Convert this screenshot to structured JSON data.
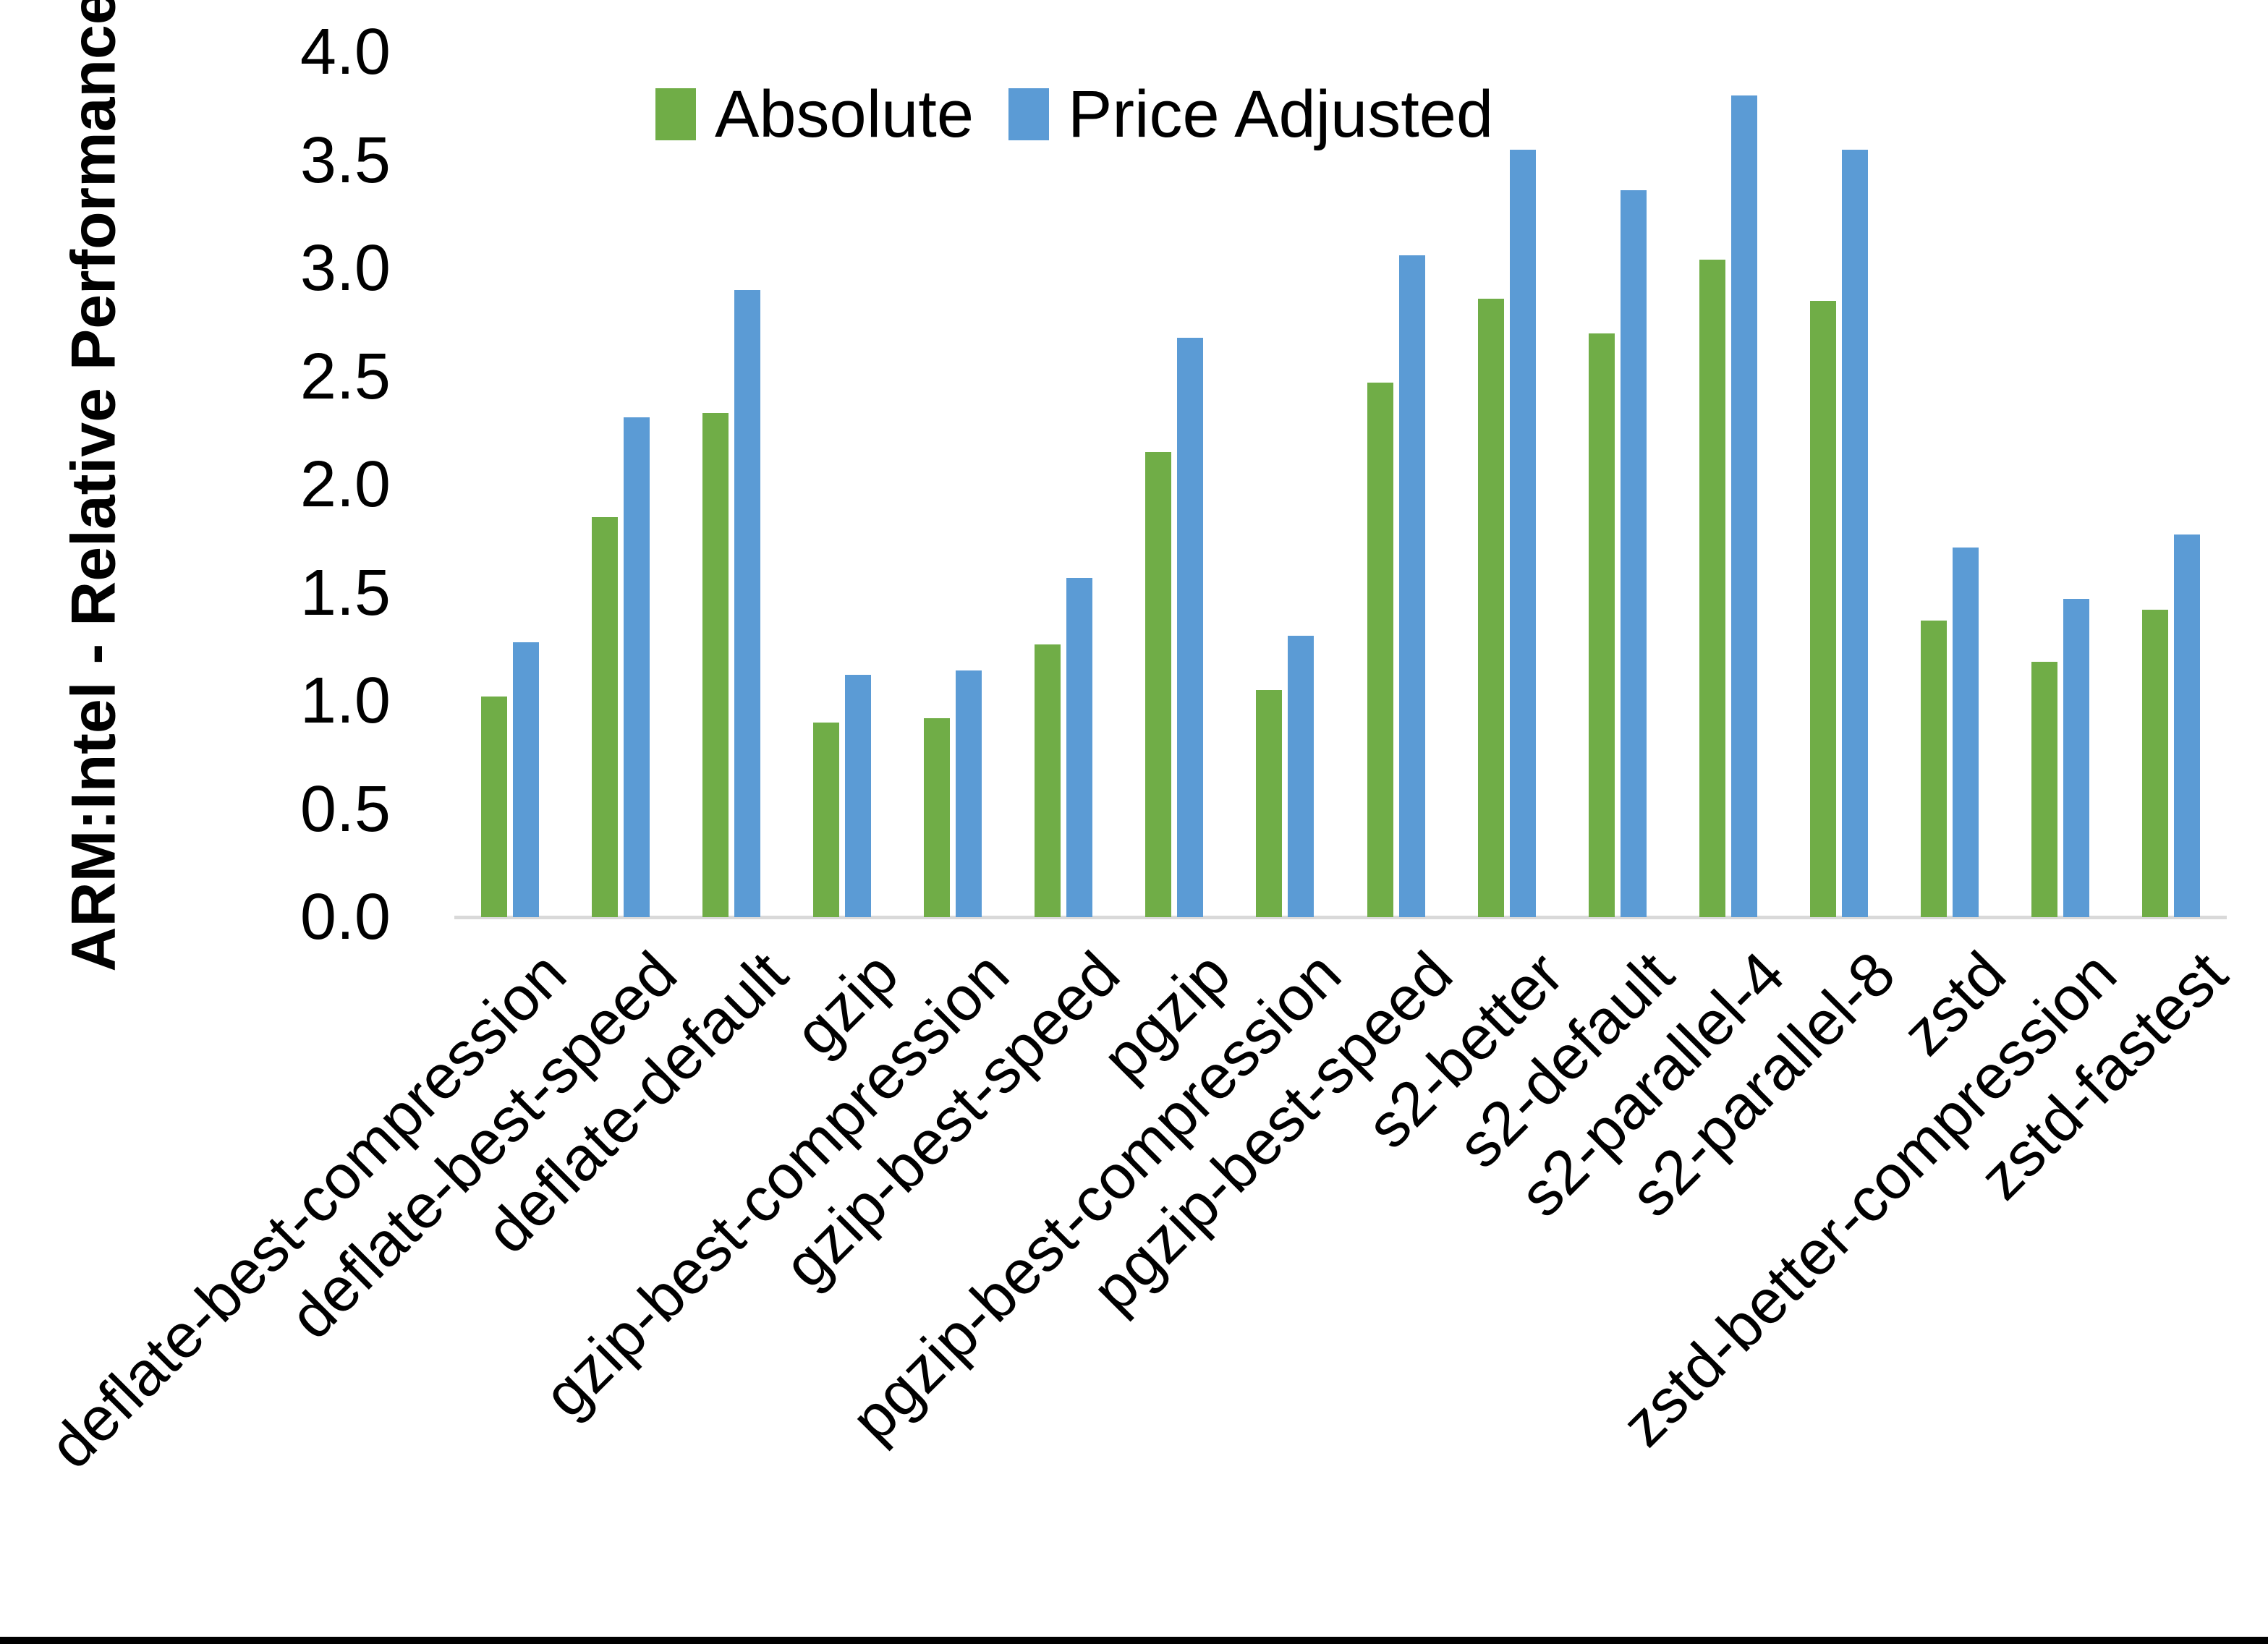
{
  "figure": {
    "y_axis_title": "ARM:Intel - Relative Performance",
    "legend": {
      "absolute_label": "Absolute",
      "price_adjusted_label": "Price Adjusted"
    },
    "colors": {
      "absolute": "#70AD47",
      "price_adjusted": "#5B9BD5",
      "axis_line": "#D9D9D9",
      "text": "#000000",
      "background": "#FFFFFF",
      "bottom_border": "#000000"
    }
  },
  "chart_data": {
    "type": "bar",
    "title": "",
    "xlabel": "",
    "ylabel": "ARM:Intel - Relative Performance",
    "ylim": [
      0.0,
      4.0
    ],
    "ytick_step": 0.5,
    "yticks": [
      "0.0",
      "0.5",
      "1.0",
      "1.5",
      "2.0",
      "2.5",
      "3.0",
      "3.5",
      "4.0"
    ],
    "grid": false,
    "legend_position": "top-inside",
    "x_label_rotation_deg": 45,
    "categories": [
      "deflate-best-compression",
      "deflate-best-speed",
      "deflate-default",
      "gzip",
      "gzip-best-compression",
      "gzip-best-speed",
      "pgzip",
      "pgzip-best-compression",
      "pgzip-best-speed",
      "s2-better",
      "s2-default",
      "s2-parallel-4",
      "s2-parallel-8",
      "zstd",
      "zstd-better-compression",
      "zstd-fastest"
    ],
    "series": [
      {
        "name": "Absolute",
        "color": "#70AD47",
        "values": [
          1.02,
          1.85,
          2.33,
          0.9,
          0.92,
          1.26,
          2.15,
          1.05,
          2.47,
          2.86,
          2.7,
          3.04,
          2.85,
          1.37,
          1.18,
          1.42
        ]
      },
      {
        "name": "Price Adjusted",
        "color": "#5B9BD5",
        "values": [
          1.27,
          2.31,
          2.9,
          1.12,
          1.14,
          1.57,
          2.68,
          1.3,
          3.06,
          3.55,
          3.36,
          3.8,
          3.55,
          1.71,
          1.47,
          1.77
        ]
      }
    ]
  }
}
